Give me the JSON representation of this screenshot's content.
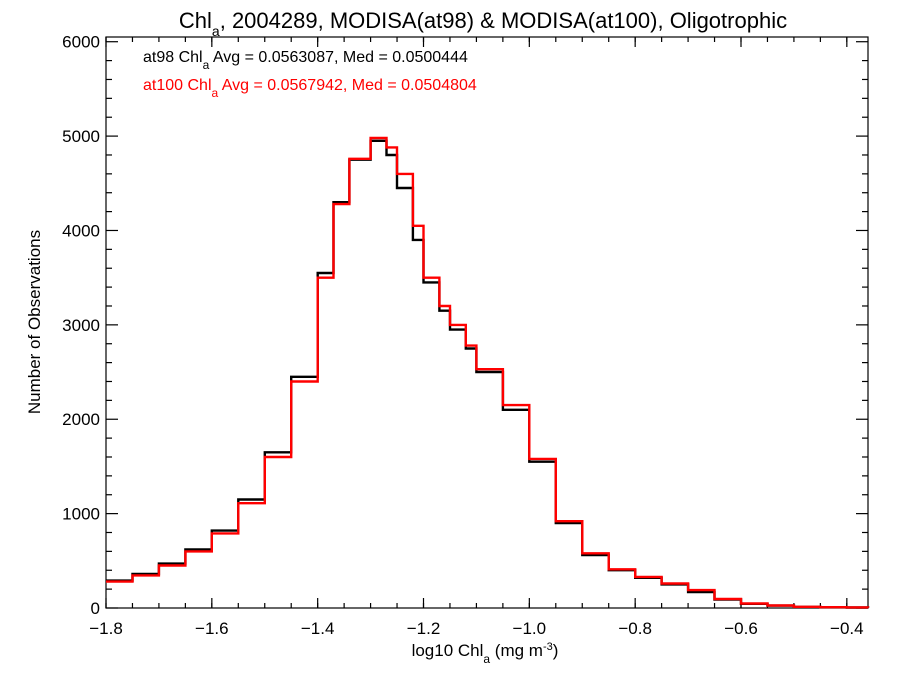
{
  "chart_data": {
    "type": "line",
    "title": {
      "base": "Chl",
      "sub": "a",
      "rest": ", 2004289, MODISA(at98) & MODISA(at100), Oligotrophic"
    },
    "xlabel": {
      "pre": "log10 Chl",
      "sub": "a",
      "mid": " (mg m",
      "sup": "-3",
      "post": ")"
    },
    "ylabel": "Number of Observations",
    "xlim": [
      -1.8,
      -0.36
    ],
    "ylim": [
      0,
      6050
    ],
    "x_ticks": [
      -1.8,
      -1.6,
      -1.4,
      -1.2,
      -1.0,
      -0.8,
      -0.6,
      -0.4
    ],
    "x_tick_labels": [
      "−1.8",
      "−1.6",
      "−1.4",
      "−1.2",
      "−1.0",
      "−0.8",
      "−0.6",
      "−0.4"
    ],
    "y_ticks": [
      0,
      1000,
      2000,
      3000,
      4000,
      5000,
      6000
    ],
    "y_tick_labels": [
      "0",
      "1000",
      "2000",
      "3000",
      "4000",
      "5000",
      "6000"
    ],
    "stats": [
      {
        "label_pre": "at98 Chl",
        "label_sub": "a",
        "label_post": " Avg = 0.0563087, Med = 0.0500444",
        "color": "#000000"
      },
      {
        "label_pre": "at100 Chl",
        "label_sub": "a",
        "label_post": " Avg = 0.0567942, Med = 0.0504804",
        "color": "#ff0000"
      }
    ],
    "series": [
      {
        "color": "#000000",
        "x": [
          -1.8,
          -1.75,
          -1.7,
          -1.65,
          -1.6,
          -1.55,
          -1.5,
          -1.45,
          -1.4,
          -1.37,
          -1.34,
          -1.3,
          -1.27,
          -1.25,
          -1.22,
          -1.2,
          -1.17,
          -1.15,
          -1.12,
          -1.1,
          -1.05,
          -1.0,
          -0.95,
          -0.9,
          -0.85,
          -0.8,
          -0.75,
          -0.7,
          -0.65,
          -0.6,
          -0.55,
          -0.5,
          -0.45,
          -0.4,
          -0.36
        ],
        "y": [
          290,
          360,
          470,
          620,
          820,
          1150,
          1650,
          2450,
          3550,
          4300,
          4750,
          4950,
          4800,
          4450,
          3900,
          3450,
          3150,
          2950,
          2750,
          2500,
          2100,
          1550,
          900,
          560,
          400,
          320,
          250,
          170,
          90,
          45,
          25,
          12,
          8,
          5,
          3
        ]
      },
      {
        "color": "#ff0000",
        "x": [
          -1.8,
          -1.75,
          -1.7,
          -1.65,
          -1.6,
          -1.55,
          -1.5,
          -1.45,
          -1.4,
          -1.37,
          -1.34,
          -1.3,
          -1.27,
          -1.25,
          -1.22,
          -1.2,
          -1.17,
          -1.15,
          -1.12,
          -1.1,
          -1.05,
          -1.0,
          -0.95,
          -0.9,
          -0.85,
          -0.8,
          -0.75,
          -0.7,
          -0.65,
          -0.6,
          -0.55,
          -0.5,
          -0.45,
          -0.4,
          -0.36
        ],
        "y": [
          280,
          345,
          450,
          600,
          790,
          1110,
          1600,
          2400,
          3500,
          4280,
          4760,
          4980,
          4880,
          4600,
          4050,
          3500,
          3200,
          3000,
          2780,
          2530,
          2150,
          1580,
          920,
          580,
          410,
          330,
          260,
          190,
          95,
          48,
          27,
          13,
          9,
          6,
          3
        ]
      }
    ]
  }
}
